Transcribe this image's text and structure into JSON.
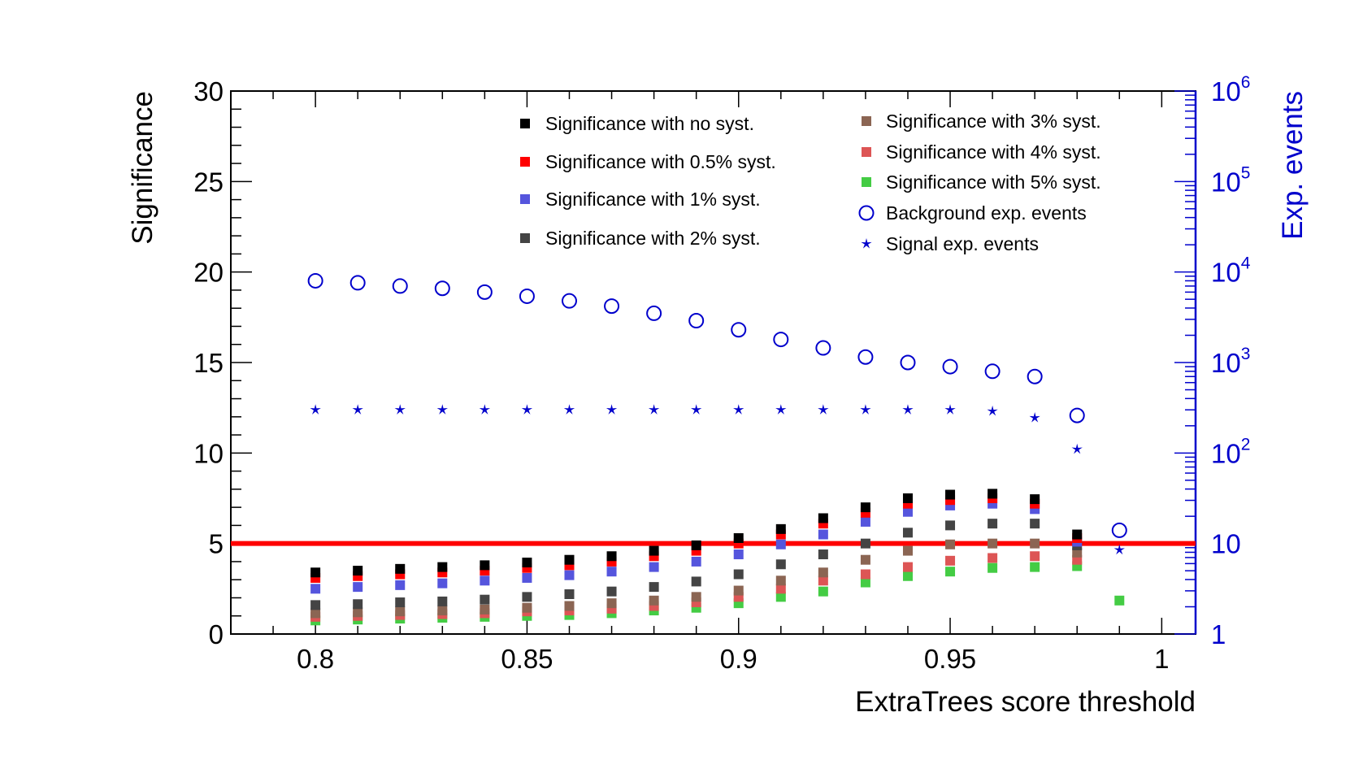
{
  "chart_data": {
    "type": "scatter",
    "xlabel": "ExtraTrees score threshold",
    "ylabel": "Significance",
    "y2label": "Exp. events",
    "xlim": [
      0.78,
      1.008
    ],
    "ylim": [
      0,
      30
    ],
    "y2lim": [
      1,
      1000000
    ],
    "y2scale": "log",
    "x_ticks": [
      "0.8",
      "0.85",
      "0.9",
      "0.95",
      "1"
    ],
    "y_ticks": [
      "0",
      "5",
      "10",
      "15",
      "20",
      "25",
      "30"
    ],
    "y2_ticks": [
      {
        "base": "1",
        "exp": ""
      },
      {
        "base": "10",
        "exp": ""
      },
      {
        "base": "10",
        "exp": "2"
      },
      {
        "base": "10",
        "exp": "3"
      },
      {
        "base": "10",
        "exp": "4"
      },
      {
        "base": "10",
        "exp": "5"
      },
      {
        "base": "10",
        "exp": "6"
      }
    ],
    "reference_line": {
      "y": 5,
      "color": "#ff0000"
    },
    "x": [
      0.8,
      0.81,
      0.82,
      0.83,
      0.84,
      0.85,
      0.86,
      0.87,
      0.88,
      0.89,
      0.9,
      0.91,
      0.92,
      0.93,
      0.94,
      0.95,
      0.96,
      0.97,
      0.98,
      0.99
    ],
    "series": [
      {
        "name": "Significance with no syst.",
        "color": "#000000",
        "marker": "square",
        "axis": "left",
        "values": [
          3.4,
          3.5,
          3.6,
          3.7,
          3.8,
          3.95,
          4.1,
          4.3,
          4.6,
          4.9,
          5.3,
          5.8,
          6.4,
          7.0,
          7.5,
          7.7,
          7.75,
          7.45,
          5.5,
          null
        ]
      },
      {
        "name": "Significance with 0.5% syst.",
        "color": "#ff0000",
        "marker": "square",
        "axis": "left",
        "values": [
          3.1,
          3.2,
          3.3,
          3.4,
          3.5,
          3.65,
          3.8,
          4.0,
          4.3,
          4.6,
          5.0,
          5.5,
          6.1,
          6.7,
          7.2,
          7.4,
          7.5,
          7.2,
          5.3,
          null
        ]
      },
      {
        "name": "Significance with 1% syst.",
        "color": "#5555dd",
        "marker": "square",
        "axis": "left",
        "values": [
          2.5,
          2.6,
          2.7,
          2.8,
          2.95,
          3.1,
          3.25,
          3.45,
          3.7,
          4.0,
          4.4,
          4.95,
          5.5,
          6.2,
          6.75,
          7.1,
          7.2,
          6.9,
          5.1,
          null
        ]
      },
      {
        "name": "Significance with 2% syst.",
        "color": "#444444",
        "marker": "square",
        "axis": "left",
        "values": [
          1.6,
          1.65,
          1.75,
          1.8,
          1.9,
          2.05,
          2.2,
          2.35,
          2.6,
          2.9,
          3.3,
          3.85,
          4.4,
          5.0,
          5.6,
          6.0,
          6.1,
          6.1,
          4.9,
          null
        ]
      },
      {
        "name": "Significance with 3% syst.",
        "color": "#8b6553",
        "marker": "square",
        "axis": "left",
        "values": [
          1.15,
          1.2,
          1.25,
          1.3,
          1.35,
          1.45,
          1.55,
          1.7,
          1.85,
          2.05,
          2.4,
          2.95,
          3.4,
          4.1,
          4.6,
          4.95,
          5.0,
          5.0,
          4.5,
          null
        ]
      },
      {
        "name": "Significance with 4% syst.",
        "color": "#dd5555",
        "marker": "square",
        "axis": "left",
        "values": [
          0.95,
          1.0,
          1.05,
          1.1,
          1.15,
          1.25,
          1.3,
          1.4,
          1.55,
          1.75,
          2.05,
          2.5,
          2.95,
          3.3,
          3.7,
          4.05,
          4.2,
          4.3,
          4.1,
          null
        ]
      },
      {
        "name": "Significance with 5% syst.",
        "color": "#44cc44",
        "marker": "square",
        "axis": "left",
        "values": [
          0.75,
          0.8,
          0.85,
          0.9,
          0.95,
          1.0,
          1.05,
          1.15,
          1.3,
          1.45,
          1.7,
          2.05,
          2.35,
          2.85,
          3.2,
          3.45,
          3.65,
          3.7,
          3.75,
          1.85
        ]
      },
      {
        "name": "Background exp. events",
        "color": "#0000cc",
        "marker": "circle",
        "axis": "right",
        "values": [
          8000,
          7600,
          7000,
          6600,
          6000,
          5400,
          4800,
          4200,
          3500,
          2900,
          2300,
          1800,
          1450,
          1150,
          1000,
          900,
          800,
          700,
          260,
          14
        ]
      },
      {
        "name": "Signal exp. events",
        "color": "#0000cc",
        "marker": "star",
        "axis": "right",
        "values": [
          300,
          300,
          300,
          300,
          300,
          300,
          300,
          300,
          300,
          300,
          300,
          300,
          300,
          300,
          300,
          300,
          290,
          245,
          110,
          8.5
        ]
      }
    ],
    "legend": {
      "placement": "top-right",
      "columns": 2
    }
  }
}
